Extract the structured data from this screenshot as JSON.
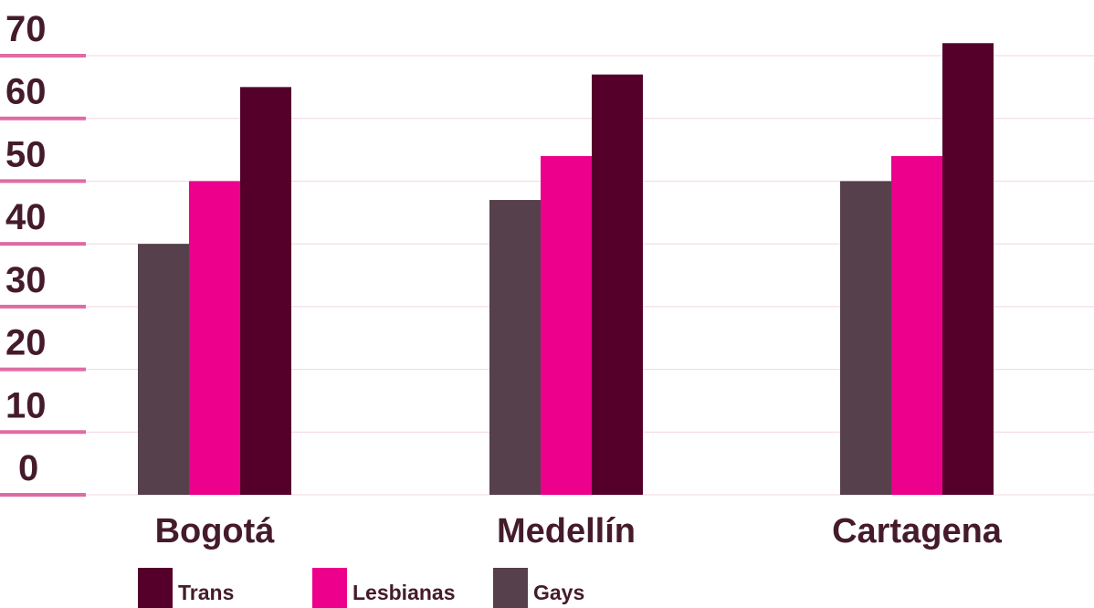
{
  "chart_data": {
    "type": "bar",
    "title": "",
    "xlabel": "",
    "ylabel": "",
    "categories": [
      "Bogotá",
      "Medellín",
      "Cartagena"
    ],
    "ylim": [
      0,
      70
    ],
    "yticks": [
      0,
      10,
      20,
      30,
      40,
      50,
      60,
      70
    ],
    "grid": true,
    "legend_position": "bottom-left",
    "series": [
      {
        "name": "Gays",
        "values": [
          40,
          47,
          50
        ],
        "color": "#55404b"
      },
      {
        "name": "Lesbianas",
        "values": [
          50,
          54,
          54
        ],
        "color": "#ec008c"
      },
      {
        "name": "Trans",
        "values": [
          65,
          67,
          72
        ],
        "color": "#55002b"
      }
    ],
    "legend_order": [
      "Trans",
      "Lesbianas",
      "Gays"
    ]
  },
  "colors": {
    "text": "#451b2c",
    "tick_mark": "#e06aa4",
    "gridline": "#f2d4e3"
  }
}
